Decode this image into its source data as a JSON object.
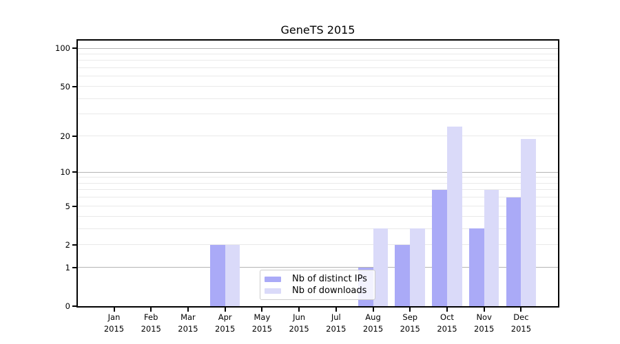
{
  "chart_data": {
    "type": "bar",
    "title": "GeneTS 2015",
    "categories": [
      "Jan 2015",
      "Feb 2015",
      "Mar 2015",
      "Apr 2015",
      "May 2015",
      "Jun 2015",
      "Jul 2015",
      "Aug 2015",
      "Sep 2015",
      "Oct 2015",
      "Nov 2015",
      "Dec 2015"
    ],
    "series": [
      {
        "name": "Nb of distinct IPs",
        "color": "#aaaaf7",
        "values": [
          0,
          0,
          0,
          2,
          0,
          0,
          0,
          1,
          2,
          7,
          3,
          6
        ]
      },
      {
        "name": "Nb of downloads",
        "color": "#dadaf9",
        "values": [
          0,
          0,
          0,
          2,
          0,
          0,
          0,
          3,
          3,
          24,
          7,
          19
        ]
      }
    ],
    "xlabel": "",
    "ylabel": "",
    "y_scale": "log1p",
    "ylim": [
      0,
      115
    ],
    "y_ticks": [
      0,
      1,
      2,
      5,
      10,
      20,
      50,
      100
    ],
    "grid": true,
    "grid_major": [
      1,
      10,
      100
    ],
    "grid_minor": [
      2,
      3,
      4,
      5,
      6,
      7,
      8,
      9,
      20,
      30,
      40,
      50,
      60,
      70,
      80,
      90
    ],
    "legend_position": "lower center"
  },
  "colors": {
    "axis": "#000000",
    "grid_major": "#b3b3b3",
    "grid_minor": "#e9e9e9",
    "legend_border": "#cccccc",
    "background": "#ffffff"
  }
}
